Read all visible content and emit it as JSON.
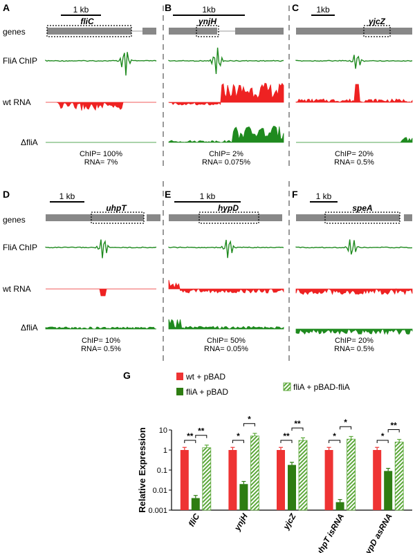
{
  "row_labels": {
    "genes": "genes",
    "chip": "FliA ChIP",
    "wt": "wt RNA",
    "mut": "ΔfliA"
  },
  "colors": {
    "chip": "#1f8a1f",
    "wt": "#ee2222",
    "mut": "#1f8a1f",
    "gene": "#888888",
    "bar_wt": "#ee3333",
    "bar_fliA": "#2e7d12",
    "bar_rescue": "#5ca83a"
  },
  "panels": [
    {
      "letter": "A",
      "scale": "1 kb",
      "gene": "fliC",
      "chip_pct": "ChIP= 100%",
      "rna_pct": "RNA= 7%"
    },
    {
      "letter": "B",
      "scale": "1kb",
      "gene": "ynjH",
      "chip_pct": "ChIP= 2%",
      "rna_pct": "RNA= 0.075%"
    },
    {
      "letter": "C",
      "scale": "1kb",
      "gene": "yjcZ",
      "chip_pct": "ChIP= 20%",
      "rna_pct": "RNA= 0.5%"
    },
    {
      "letter": "D",
      "scale": "1 kb",
      "gene": "uhpT",
      "chip_pct": "ChIP= 10%",
      "rna_pct": "RNA= 0.5%"
    },
    {
      "letter": "E",
      "scale": "1 kb",
      "gene": "hypD",
      "chip_pct": "ChIP= 50%",
      "rna_pct": "RNA= 0.05%"
    },
    {
      "letter": "F",
      "scale": "1 kb",
      "gene": "speA",
      "chip_pct": "ChIP= 20%",
      "rna_pct": "RNA= 0.5%"
    }
  ],
  "chart_data": {
    "type": "bar",
    "panel_letter": "G",
    "ylabel": "Relative Expression",
    "yscale": "log",
    "ylim": [
      0.001,
      10
    ],
    "ytick_labels": [
      "10",
      "1",
      "0.1",
      "0.01",
      "0.001"
    ],
    "categories": [
      "fliC",
      "ynjH",
      "yjcZ",
      "uhpT isRNA",
      "hypD asRNA"
    ],
    "series": [
      {
        "name": "wt + pBAD",
        "values": [
          1.0,
          1.0,
          1.0,
          1.0,
          1.0
        ]
      },
      {
        "name": "fliA + pBAD",
        "values": [
          0.004,
          0.02,
          0.18,
          0.0025,
          0.09
        ]
      },
      {
        "name": "fliA + pBAD-fliA",
        "values": [
          1.3,
          5.0,
          3.0,
          3.5,
          2.5
        ]
      }
    ],
    "significance": [
      [
        "**",
        "**"
      ],
      [
        "*",
        "*"
      ],
      [
        "**",
        "**"
      ],
      [
        "*",
        "*"
      ],
      [
        "*",
        "**"
      ]
    ],
    "legend_position": "top"
  }
}
